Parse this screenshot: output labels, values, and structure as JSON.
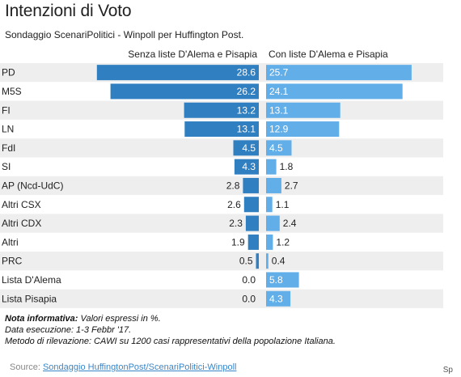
{
  "header": {
    "title": "Intenzioni di Voto",
    "subtitle": "Sondaggio ScenariPolitici - Winpoll per Huffington Post."
  },
  "chart_data": {
    "type": "bar",
    "categories": [
      "PD",
      "M5S",
      "FI",
      "LN",
      "FdI",
      "SI",
      "AP (Ncd-UdC)",
      "Altri CSX",
      "Altri CDX",
      "Altri",
      "PRC",
      "Lista D'Alema",
      "Lista Pisapia"
    ],
    "series": [
      {
        "name": "Senza liste D'Alema e Pisapia",
        "values": [
          28.6,
          26.2,
          13.2,
          13.1,
          4.5,
          4.3,
          2.8,
          2.6,
          2.3,
          1.9,
          0.5,
          0.0,
          0.0
        ],
        "value_labels": [
          "28.6",
          "26.2",
          "13.2",
          "13.1",
          "4.5",
          "4.3",
          "2.8",
          "2.6",
          "2.3",
          "1.9",
          "0.5",
          "0.0",
          "0.0"
        ],
        "color": "#2f7fc1"
      },
      {
        "name": "Con liste D'Alema e Pisapia",
        "values": [
          25.7,
          24.1,
          13.1,
          12.9,
          4.5,
          1.8,
          2.7,
          1.1,
          2.4,
          1.2,
          0.4,
          5.8,
          4.3
        ],
        "value_labels": [
          "25.7",
          "24.1",
          "13.1",
          "12.9",
          "4.5",
          "1.8",
          "2.7",
          "1.1",
          "2.4",
          "1.2",
          "0.4",
          "5.8",
          "4.3"
        ],
        "color": "#62aee8"
      }
    ],
    "row_band_color": "#eeeeee",
    "grid": false
  },
  "notes": {
    "line1_bold": "Nota informativa:",
    "line1_rest": " Valori espressi in %.",
    "line2": "Data esecuzione: 1-3 Febbr '17.",
    "line3": "Metodo di rilevazione: CAWI su 1200 casi rappresentativi della popolazione Italiana."
  },
  "source": {
    "label": "Source: ",
    "link_text": "Sondaggio HuffingtonPost/ScenariPolitici-Winpoll"
  },
  "credit": "Sp"
}
